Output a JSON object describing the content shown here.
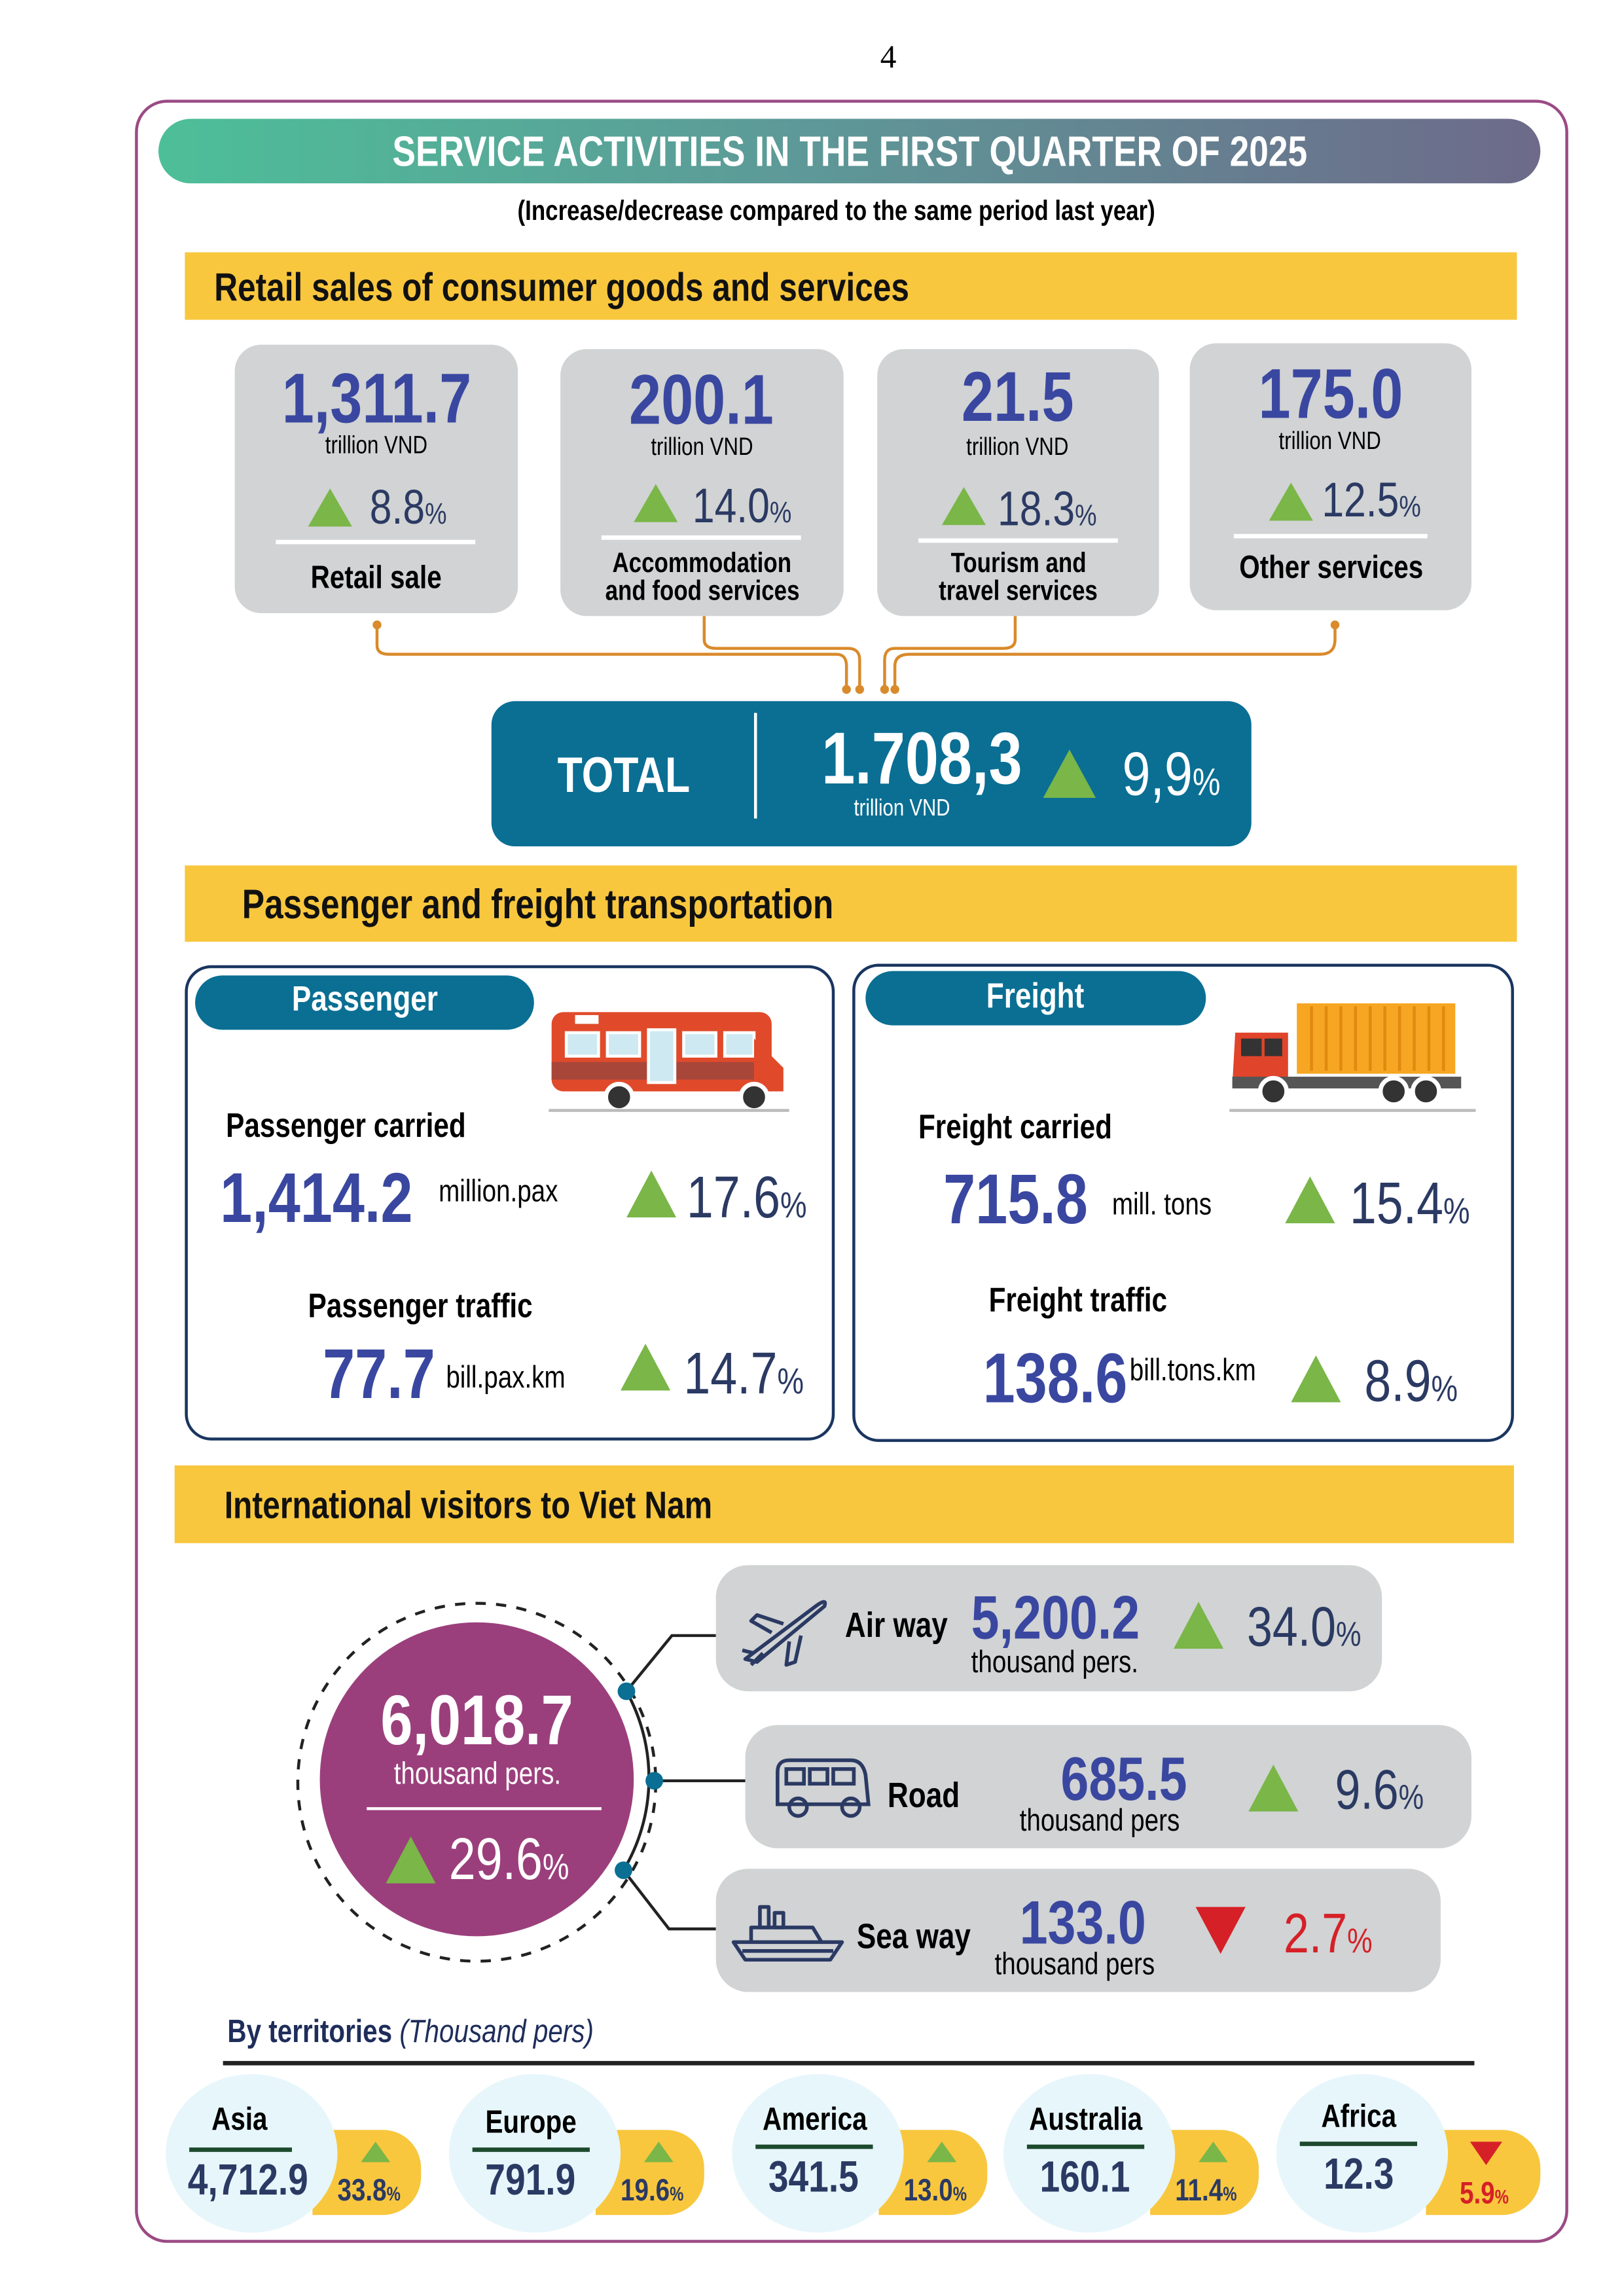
{
  "page_number": "4",
  "title": "SERVICE ACTIVITIES IN THE FIRST QUARTER OF 2025",
  "subtitle": "(Increase/decrease compared to the same period last year)",
  "colors": {
    "green": "#7ab648",
    "red": "#d62027",
    "teal": "#0a6f93",
    "yellow": "#f8c73e",
    "purple": "#9b3f7c",
    "blue": "#3a47a0"
  },
  "retail": {
    "heading": "Retail sales of consumer goods and services",
    "cards": [
      {
        "value": "1,311.7",
        "unit": "trillion VND",
        "change": "8.8",
        "pct": "%",
        "label": "Retail sale",
        "direction": "up"
      },
      {
        "value": "200.1",
        "unit": "trillion VND",
        "change": "14.0",
        "pct": "%",
        "label_line1": "Accommodation",
        "label_line2": "and food services",
        "direction": "up"
      },
      {
        "value": "21.5",
        "unit": "trillion VND",
        "change": "18.3",
        "pct": "%",
        "label_line1": "Tourism and",
        "label_line2": "travel services",
        "direction": "up"
      },
      {
        "value": "175.0",
        "unit": "trillion VND",
        "change": "12.5",
        "pct": "%",
        "label": "Other services",
        "direction": "up"
      }
    ],
    "total": {
      "label": "TOTAL",
      "value": "1.708,3",
      "unit": "trillion VND",
      "change": "9,9",
      "pct": "%",
      "direction": "up"
    }
  },
  "transport": {
    "heading": "Passenger and freight transportation",
    "passenger": {
      "tab": "Passenger",
      "carried": {
        "label": "Passenger carried",
        "value": "1,414.2",
        "unit": "million.pax",
        "change": "17.6",
        "pct": "%"
      },
      "traffic": {
        "label": "Passenger traffic",
        "value": "77.7",
        "unit": "bill.pax.km",
        "change": "14.7",
        "pct": "%"
      }
    },
    "freight": {
      "tab": "Freight",
      "carried": {
        "label": "Freight carried",
        "value": "715.8",
        "unit": "mill. tons",
        "change": "15.4",
        "pct": "%"
      },
      "traffic": {
        "label": "Freight traffic",
        "value": "138.6",
        "unit": "bill.tons.km",
        "change": "8.9",
        "pct": "%"
      }
    }
  },
  "visitors": {
    "heading": "International visitors to Viet Nam",
    "total": {
      "value": "6,018.7",
      "unit": "thousand pers.",
      "change": "29.6",
      "pct": "%"
    },
    "modes": [
      {
        "label": "Air way",
        "value": "5,200.2",
        "unit": "thousand pers.",
        "change": "34.0",
        "pct": "%",
        "direction": "up"
      },
      {
        "label": "Road",
        "value": "685.5",
        "unit": "thousand pers",
        "change": "9.6",
        "pct": "%",
        "direction": "up"
      },
      {
        "label": "Sea way",
        "value": "133.0",
        "unit": "thousand pers",
        "change": "2.7",
        "pct": "%",
        "direction": "down"
      }
    ],
    "territories_heading": "By territories",
    "territories_unit": "(Thousand pers)",
    "territories": [
      {
        "name": "Asia",
        "value": "4,712.9",
        "change": "33.8",
        "pct": "%",
        "direction": "up"
      },
      {
        "name": "Europe",
        "value": "791.9",
        "change": "19.6",
        "pct": "%",
        "direction": "up"
      },
      {
        "name": "America",
        "value": "341.5",
        "change": "13.0",
        "pct": "%",
        "direction": "up"
      },
      {
        "name": "Australia",
        "value": "160.1",
        "change": "11.4",
        "pct": "%",
        "direction": "up"
      },
      {
        "name": "Africa",
        "value": "12.3",
        "change": "5.9",
        "pct": "%",
        "direction": "down"
      }
    ]
  }
}
